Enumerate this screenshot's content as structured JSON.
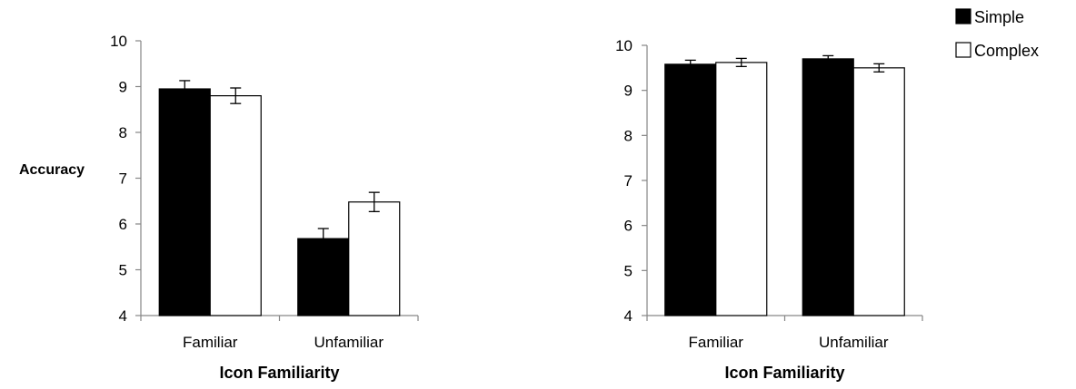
{
  "legend": {
    "position": "top-right",
    "items": [
      {
        "label": "Simple",
        "color": "#000000"
      },
      {
        "label": "Complex",
        "color": "#ffffff"
      }
    ]
  },
  "chart_data": [
    {
      "type": "bar",
      "categories": [
        "Familiar",
        "Unfamiliar"
      ],
      "series": [
        {
          "name": "Simple",
          "values": [
            8.95,
            5.68
          ],
          "errors": [
            0.18,
            0.22
          ]
        },
        {
          "name": "Complex",
          "values": [
            8.8,
            6.48
          ],
          "errors": [
            0.17,
            0.21
          ]
        }
      ],
      "xlabel": "Icon Familiarity",
      "ylabel": "Accuracy",
      "ylim": [
        4,
        10
      ],
      "yticks": [
        4,
        5,
        6,
        7,
        8,
        9,
        10
      ],
      "grid": false
    },
    {
      "type": "bar",
      "categories": [
        "Familiar",
        "Unfamiliar"
      ],
      "series": [
        {
          "name": "Simple",
          "values": [
            9.58,
            9.7
          ],
          "errors": [
            0.09,
            0.07
          ]
        },
        {
          "name": "Complex",
          "values": [
            9.62,
            9.5
          ],
          "errors": [
            0.09,
            0.09
          ]
        }
      ],
      "xlabel": "Icon Familiarity",
      "ylabel": "",
      "ylim": [
        4,
        10
      ],
      "yticks": [
        4,
        5,
        6,
        7,
        8,
        9,
        10
      ],
      "grid": false
    }
  ]
}
